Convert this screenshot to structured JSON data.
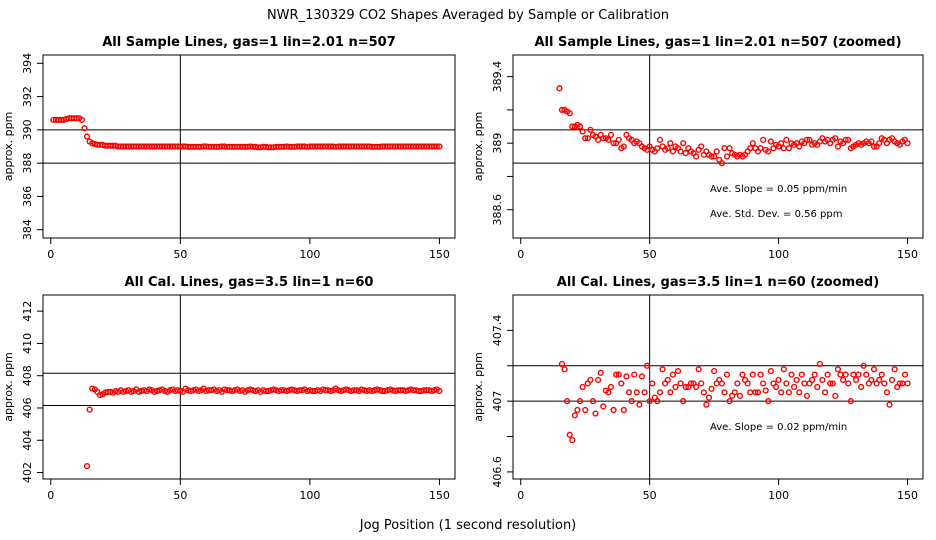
{
  "title": "NWR_130329  CO2 Shapes Averaged by Sample or Calibration",
  "xlabel": "Jog Position (1 second resolution)",
  "chart_data": [
    {
      "type": "scatter",
      "title": "All Sample Lines, gas=1 lin=2.01 n=507",
      "ylabel": "approx. ppm",
      "xlim": [
        -3,
        156
      ],
      "ylim": [
        383.5,
        394.5
      ],
      "xticks": [
        0,
        50,
        100,
        150
      ],
      "yticks": [
        384,
        386,
        388,
        390,
        392,
        394
      ],
      "hlines": [
        390,
        388
      ],
      "vline": 50,
      "color": "#ff0000",
      "annotations": [],
      "x": [
        1,
        2,
        3,
        4,
        5,
        6,
        7,
        8,
        9,
        10,
        11,
        12,
        13,
        14,
        15,
        16,
        17,
        18,
        19,
        20,
        21,
        22,
        23,
        24,
        25,
        26,
        27,
        28,
        29,
        30,
        31,
        32,
        33,
        34,
        35,
        36,
        37,
        38,
        39,
        40,
        41,
        42,
        43,
        44,
        45,
        46,
        47,
        48,
        49,
        50,
        51,
        52,
        53,
        54,
        55,
        56,
        57,
        58,
        59,
        60,
        61,
        62,
        63,
        64,
        65,
        66,
        67,
        68,
        69,
        70,
        71,
        72,
        73,
        74,
        75,
        76,
        77,
        78,
        79,
        80,
        81,
        82,
        83,
        84,
        85,
        86,
        87,
        88,
        89,
        90,
        91,
        92,
        93,
        94,
        95,
        96,
        97,
        98,
        99,
        100,
        101,
        102,
        103,
        104,
        105,
        106,
        107,
        108,
        109,
        110,
        111,
        112,
        113,
        114,
        115,
        116,
        117,
        118,
        119,
        120,
        121,
        122,
        123,
        124,
        125,
        126,
        127,
        128,
        129,
        130,
        131,
        132,
        133,
        134,
        135,
        136,
        137,
        138,
        139,
        140,
        141,
        142,
        143,
        144,
        145,
        146,
        147,
        148,
        149,
        150
      ],
      "y": [
        390.6,
        390.6,
        390.6,
        390.6,
        390.6,
        390.65,
        390.7,
        390.7,
        390.7,
        390.7,
        390.7,
        390.6,
        390.1,
        389.6,
        389.3,
        389.2,
        389.15,
        389.1,
        389.1,
        389.1,
        389.05,
        389.05,
        389.05,
        389.05,
        389.05,
        389.0,
        389.0,
        389.0,
        389.0,
        389.0,
        389.0,
        389.0,
        389.0,
        389.0,
        389.0,
        389.0,
        389.0,
        389.0,
        389.0,
        389.0,
        389.0,
        389.0,
        389.0,
        389.0,
        389.0,
        389.0,
        389.0,
        389.0,
        389.0,
        389.0,
        389.0,
        389.0,
        388.98,
        388.98,
        388.98,
        388.98,
        388.98,
        388.98,
        389.0,
        389.0,
        388.98,
        388.98,
        388.98,
        388.98,
        388.98,
        389.0,
        389.0,
        388.98,
        388.98,
        388.98,
        388.98,
        388.98,
        388.98,
        388.98,
        388.98,
        388.98,
        389.0,
        388.98,
        388.98,
        388.95,
        388.95,
        388.98,
        388.98,
        388.95,
        388.95,
        388.95,
        388.98,
        388.98,
        388.98,
        388.98,
        389.0,
        388.98,
        388.98,
        388.98,
        389.0,
        389.0,
        389.0,
        389.0,
        388.98,
        389.0,
        389.0,
        389.0,
        389.0,
        389.0,
        389.0,
        389.0,
        389.0,
        389.0,
        389.0,
        388.98,
        389.0,
        389.0,
        389.0,
        389.0,
        389.0,
        389.0,
        389.0,
        389.0,
        389.0,
        389.0,
        389.0,
        389.0,
        389.0,
        388.98,
        388.98,
        388.98,
        388.98,
        389.0,
        389.0,
        389.0,
        389.0,
        389.0,
        389.0,
        389.0,
        389.0,
        389.0,
        389.0,
        389.0,
        389.0,
        389.0,
        389.0,
        389.0,
        389.0,
        389.0,
        389.0,
        389.0,
        389.0,
        389.0,
        389.0,
        389.0
      ]
    },
    {
      "type": "scatter",
      "title": "All Sample Lines, gas=1 lin=2.01 n=507 (zoomed)",
      "ylabel": "approx. ppm",
      "xlim": [
        -3,
        156
      ],
      "ylim": [
        388.43,
        389.53
      ],
      "xticks": [
        0,
        50,
        100,
        150
      ],
      "yticks": [
        388.6,
        388.8,
        389.0,
        389.2,
        389.4
      ],
      "yticklabels_shown": [
        388.6,
        389.0,
        389.4
      ],
      "hlines": [
        389.08,
        388.88
      ],
      "vline": 50,
      "color": "#ff0000",
      "annotations": [
        "Ave. Slope =  0.05  ppm/min",
        "Ave. Std. Dev. =  0.56  ppm"
      ],
      "x": [
        15,
        16,
        17,
        18,
        19,
        20,
        21,
        22,
        23,
        24,
        25,
        26,
        27,
        28,
        29,
        30,
        31,
        32,
        33,
        34,
        35,
        36,
        37,
        38,
        39,
        40,
        41,
        42,
        43,
        44,
        45,
        46,
        47,
        48,
        49,
        50,
        51,
        52,
        53,
        54,
        55,
        56,
        57,
        58,
        59,
        60,
        61,
        62,
        63,
        64,
        65,
        66,
        67,
        68,
        69,
        70,
        71,
        72,
        73,
        74,
        75,
        76,
        77,
        78,
        79,
        80,
        81,
        82,
        83,
        84,
        85,
        86,
        87,
        88,
        89,
        90,
        91,
        92,
        93,
        94,
        95,
        96,
        97,
        98,
        99,
        100,
        101,
        102,
        103,
        104,
        105,
        106,
        107,
        108,
        109,
        110,
        111,
        112,
        113,
        114,
        115,
        116,
        117,
        118,
        119,
        120,
        121,
        122,
        123,
        124,
        125,
        126,
        127,
        128,
        129,
        130,
        131,
        132,
        133,
        134,
        135,
        136,
        137,
        138,
        139,
        140,
        141,
        142,
        143,
        144,
        145,
        146,
        147,
        148,
        149,
        150
      ],
      "y": [
        389.33,
        389.2,
        389.2,
        389.19,
        389.18,
        389.1,
        389.1,
        389.11,
        389.1,
        389.07,
        389.03,
        389.03,
        389.08,
        389.05,
        389.04,
        389.02,
        389.05,
        389.03,
        389.03,
        389.02,
        389.05,
        389.0,
        389.0,
        389.02,
        388.97,
        388.98,
        389.05,
        389.03,
        389.02,
        389.0,
        389.01,
        389.0,
        388.98,
        388.97,
        388.96,
        388.98,
        388.96,
        388.95,
        388.97,
        389.02,
        388.98,
        388.96,
        388.97,
        389.0,
        388.95,
        388.98,
        388.97,
        388.95,
        389.0,
        388.94,
        388.97,
        388.95,
        388.94,
        388.92,
        388.96,
        388.98,
        388.93,
        388.95,
        388.93,
        388.92,
        388.92,
        388.95,
        388.9,
        388.88,
        388.97,
        388.92,
        388.97,
        388.94,
        388.93,
        388.92,
        388.93,
        388.92,
        388.93,
        388.95,
        388.97,
        389.0,
        388.97,
        388.95,
        388.97,
        389.02,
        388.96,
        388.95,
        389.01,
        388.97,
        388.99,
        388.98,
        389.0,
        388.97,
        389.02,
        388.97,
        389.0,
        388.99,
        389.0,
        388.98,
        389.01,
        389.0,
        389.02,
        389.02,
        388.99,
        389.0,
        388.99,
        389.01,
        389.03,
        389.01,
        389.02,
        389.0,
        389.02,
        389.03,
        388.98,
        389.01,
        389.0,
        389.02,
        389.02,
        388.97,
        388.98,
        388.99,
        389.0,
        388.99,
        389.0,
        389.01,
        389.0,
        389.01,
        388.98,
        388.98,
        389.0,
        389.03,
        389.02,
        389.0,
        389.02,
        389.03,
        389.01,
        389.0,
        388.99,
        389.01,
        389.02,
        389.0
      ],
      "notes": "zoomed view of the same series"
    },
    {
      "type": "scatter",
      "title": "All Cal. Lines, gas=3.5 lin=1 n=60",
      "ylabel": "approx. ppm",
      "xlim": [
        -3,
        156
      ],
      "ylim": [
        401.6,
        413.0
      ],
      "xticks": [
        0,
        50,
        100,
        150
      ],
      "yticks": [
        402,
        404,
        406,
        408,
        410,
        412
      ],
      "hlines": [
        408.15,
        406.15
      ],
      "vline": 50,
      "color": "#ff0000",
      "annotations": [],
      "x": [
        14,
        15,
        16,
        17,
        18,
        19,
        20,
        21,
        22,
        23,
        24,
        25,
        26,
        27,
        28,
        29,
        30,
        31,
        32,
        33,
        34,
        35,
        36,
        37,
        38,
        39,
        40,
        41,
        42,
        43,
        44,
        45,
        46,
        47,
        48,
        49,
        50,
        51,
        52,
        53,
        54,
        55,
        56,
        57,
        58,
        59,
        60,
        61,
        62,
        63,
        64,
        65,
        66,
        67,
        68,
        69,
        70,
        71,
        72,
        73,
        74,
        75,
        76,
        77,
        78,
        79,
        80,
        81,
        82,
        83,
        84,
        85,
        86,
        87,
        88,
        89,
        90,
        91,
        92,
        93,
        94,
        95,
        96,
        97,
        98,
        99,
        100,
        101,
        102,
        103,
        104,
        105,
        106,
        107,
        108,
        109,
        110,
        111,
        112,
        113,
        114,
        115,
        116,
        117,
        118,
        119,
        120,
        121,
        122,
        123,
        124,
        125,
        126,
        127,
        128,
        129,
        130,
        131,
        132,
        133,
        134,
        135,
        136,
        137,
        138,
        139,
        140,
        141,
        142,
        143,
        144,
        145,
        146,
        147,
        148,
        149,
        150
      ],
      "y": [
        402.4,
        405.9,
        407.2,
        407.15,
        407.0,
        406.8,
        406.85,
        406.95,
        407.0,
        407.0,
        406.95,
        407.05,
        407.0,
        407.1,
        407.0,
        407.05,
        407.1,
        407.0,
        407.05,
        407.15,
        407.0,
        407.05,
        407.1,
        407.05,
        407.15,
        407.1,
        407.0,
        407.05,
        407.1,
        407.15,
        407.05,
        407.0,
        407.1,
        407.15,
        407.05,
        407.1,
        407.05,
        407.0,
        407.2,
        407.1,
        407.05,
        407.1,
        407.15,
        407.05,
        407.1,
        407.2,
        407.05,
        407.1,
        407.1,
        407.15,
        407.05,
        407.1,
        407.0,
        407.15,
        407.1,
        407.1,
        407.05,
        407.1,
        407.15,
        407.05,
        407.1,
        407.0,
        407.1,
        407.15,
        407.1,
        407.05,
        407.1,
        407.0,
        407.1,
        407.05,
        407.05,
        407.1,
        407.15,
        407.1,
        407.05,
        407.1,
        407.1,
        407.05,
        407.1,
        407.15,
        407.1,
        407.05,
        407.1,
        407.1,
        407.15,
        407.05,
        407.1,
        407.05,
        407.05,
        407.1,
        407.05,
        407.15,
        407.1,
        407.1,
        407.05,
        407.1,
        407.2,
        407.1,
        407.05,
        407.1,
        407.15,
        407.1,
        407.05,
        407.1,
        407.1,
        407.05,
        407.15,
        407.1,
        407.05,
        407.1,
        407.05,
        407.1,
        407.15,
        407.1,
        407.05,
        407.05,
        407.1,
        407.15,
        407.1,
        407.05,
        407.1,
        407.1,
        407.1,
        407.05,
        407.1,
        407.15,
        407.1,
        407.1,
        407.05,
        407.05,
        407.1,
        407.1,
        407.1,
        407.05,
        407.1,
        407.15,
        407.05
      ]
    },
    {
      "type": "scatter",
      "title": "All Cal. Lines, gas=3.5 lin=1 n=60 (zoomed)",
      "ylabel": "approx. ppm",
      "xlim": [
        -3,
        156
      ],
      "ylim": [
        406.56,
        407.6
      ],
      "xticks": [
        0,
        50,
        100,
        150
      ],
      "yticks": [
        406.6,
        406.8,
        407.0,
        407.2,
        407.4
      ],
      "yticklabels_shown": [
        406.6,
        407.0,
        407.4
      ],
      "hlines": [
        407.2,
        407.0
      ],
      "vline": 50,
      "color": "#ff0000",
      "annotations": [
        "Ave. Slope =  0.02  ppm/min"
      ],
      "x": [
        16,
        17,
        18,
        19,
        20,
        21,
        22,
        23,
        24,
        25,
        26,
        27,
        28,
        29,
        30,
        31,
        32,
        33,
        34,
        35,
        36,
        37,
        38,
        39,
        40,
        41,
        42,
        43,
        44,
        45,
        46,
        47,
        48,
        49,
        50,
        51,
        52,
        53,
        54,
        55,
        56,
        57,
        58,
        59,
        60,
        61,
        62,
        63,
        64,
        65,
        66,
        67,
        68,
        69,
        70,
        71,
        72,
        73,
        74,
        75,
        76,
        77,
        78,
        79,
        80,
        81,
        82,
        83,
        84,
        85,
        86,
        87,
        88,
        89,
        90,
        91,
        92,
        93,
        94,
        95,
        96,
        97,
        98,
        99,
        100,
        101,
        102,
        103,
        104,
        105,
        106,
        107,
        108,
        109,
        110,
        111,
        112,
        113,
        114,
        115,
        116,
        117,
        118,
        119,
        120,
        121,
        122,
        123,
        124,
        125,
        126,
        127,
        128,
        129,
        130,
        131,
        132,
        133,
        134,
        135,
        136,
        137,
        138,
        139,
        140,
        141,
        142,
        143,
        144,
        145,
        146,
        147,
        148,
        149,
        150
      ],
      "y": [
        407.21,
        407.18,
        407.0,
        406.81,
        406.78,
        406.92,
        406.95,
        407.0,
        407.08,
        406.95,
        407.1,
        407.12,
        407.0,
        406.93,
        407.12,
        407.16,
        406.97,
        407.06,
        407.05,
        407.08,
        406.95,
        407.15,
        407.15,
        407.1,
        406.95,
        407.14,
        407.05,
        407.0,
        407.15,
        407.05,
        406.98,
        407.14,
        407.05,
        407.2,
        407.0,
        407.1,
        407.02,
        407.0,
        407.05,
        407.18,
        407.1,
        407.12,
        407.05,
        407.15,
        407.08,
        407.17,
        407.1,
        407.0,
        407.08,
        407.08,
        407.1,
        407.1,
        407.08,
        407.18,
        407.1,
        407.05,
        406.98,
        407.02,
        407.07,
        407.17,
        407.1,
        407.12,
        407.1,
        407.05,
        407.15,
        407.0,
        407.03,
        407.05,
        407.1,
        407.03,
        407.15,
        407.12,
        407.1,
        407.05,
        407.15,
        407.05,
        407.05,
        407.15,
        407.1,
        407.06,
        407.0,
        407.17,
        407.1,
        407.08,
        407.12,
        407.05,
        407.18,
        407.1,
        407.05,
        407.15,
        407.08,
        407.12,
        407.05,
        407.15,
        407.1,
        407.03,
        407.1,
        407.12,
        407.15,
        407.08,
        407.21,
        407.12,
        407.05,
        407.15,
        407.1,
        407.1,
        407.03,
        407.18,
        407.15,
        407.12,
        407.15,
        407.1,
        407.0,
        407.15,
        407.12,
        407.15,
        407.08,
        407.2,
        407.15,
        407.1,
        407.12,
        407.18,
        407.1,
        407.12,
        407.15,
        407.1,
        407.05,
        406.98,
        407.12,
        407.18,
        407.08,
        407.1,
        407.1,
        407.15,
        407.1
      ]
    }
  ]
}
